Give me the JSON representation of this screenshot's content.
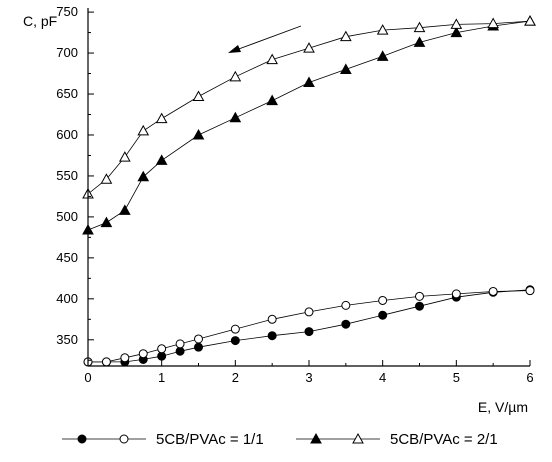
{
  "chart_data": {
    "type": "scatter",
    "xlabel": "E, V/µm",
    "ylabel": "C, pF",
    "xlim": [
      0,
      6
    ],
    "ylim": [
      318,
      755
    ],
    "xticks": [
      0,
      1,
      2,
      3,
      4,
      5,
      6
    ],
    "yticks": [
      350,
      400,
      450,
      500,
      550,
      600,
      650,
      700,
      750
    ],
    "grid": false,
    "legend_position": "bottom",
    "annotation": "arrow pointing toward decreasing E (top center)",
    "legend_groups": [
      {
        "label": "5CB/PVAc = 1/1",
        "markers": [
          "filled-circle",
          "open-circle"
        ]
      },
      {
        "label": "5CB/PVAc = 2/1",
        "markers": [
          "filled-triangle",
          "open-triangle"
        ]
      }
    ],
    "series": [
      {
        "marker": "filled-circle",
        "x": [
          0,
          0.25,
          0.5,
          0.75,
          1.0,
          1.25,
          1.5,
          2.0,
          2.5,
          3.0,
          3.5,
          4.0,
          4.5,
          5.0,
          5.5,
          6.0
        ],
        "y": [
          323,
          323,
          323,
          326,
          330,
          336,
          341,
          349,
          355,
          360,
          369,
          380,
          391,
          402,
          408,
          411
        ]
      },
      {
        "marker": "open-circle",
        "x": [
          0,
          0.25,
          0.5,
          0.75,
          1.0,
          1.25,
          1.5,
          2.0,
          2.5,
          3.0,
          3.5,
          4.0,
          4.5,
          5.0,
          5.5,
          6.0
        ],
        "y": [
          323,
          323,
          328,
          333,
          339,
          345,
          351,
          363,
          375,
          384,
          392,
          398,
          403,
          406,
          409,
          410
        ]
      },
      {
        "marker": "filled-triangle",
        "x": [
          0,
          0.25,
          0.5,
          0.75,
          1.0,
          1.5,
          2.0,
          2.5,
          3.0,
          3.5,
          4.0,
          4.5,
          5.0,
          5.5,
          6.0
        ],
        "y": [
          484,
          493,
          508,
          549,
          569,
          600,
          621,
          642,
          664,
          680,
          696,
          713,
          725,
          733,
          739
        ]
      },
      {
        "marker": "open-triangle",
        "x": [
          0,
          0.25,
          0.5,
          0.75,
          1.0,
          1.5,
          2.0,
          2.5,
          3.0,
          3.5,
          4.0,
          4.5,
          5.0,
          5.5,
          6.0
        ],
        "y": [
          528,
          546,
          573,
          605,
          620,
          647,
          671,
          692,
          706,
          720,
          728,
          731,
          735,
          736,
          739
        ]
      }
    ]
  }
}
